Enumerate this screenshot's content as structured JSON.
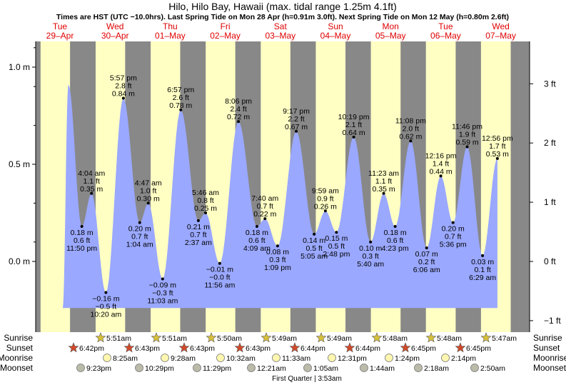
{
  "title": "Hilo, Hilo Bay, Hawaii (max. tidal range 1.25m 4.1ft)",
  "subtitle": "Times are HST (UTC −10.0hrs). Last Spring Tide on Mon 28 Apr (h=0.91m 3.0ft). Next Spring Tide on Mon 12 May (h=0.80m 2.6ft)",
  "colors": {
    "water": "#9aa8ff",
    "day": "#ffffc4",
    "night": "#888888",
    "accent": "#e00000"
  },
  "days": [
    {
      "dow": "Tue",
      "date": "29–Apr"
    },
    {
      "dow": "Wed",
      "date": "30–Apr"
    },
    {
      "dow": "Thu",
      "date": "01–May"
    },
    {
      "dow": "Fri",
      "date": "02–May"
    },
    {
      "dow": "Sat",
      "date": "03–May"
    },
    {
      "dow": "Sun",
      "date": "04–May"
    },
    {
      "dow": "Mon",
      "date": "05–May"
    },
    {
      "dow": "Tue",
      "date": "06–May"
    },
    {
      "dow": "Wed",
      "date": "07–May"
    }
  ],
  "left_ticks": [
    "1.0 m",
    "0.5 m",
    "0.0 m"
  ],
  "right_ticks": [
    "3 ft",
    "2 ft",
    "1 ft",
    "0 ft",
    "−1 ft"
  ],
  "chart_data": {
    "type": "area",
    "title": "Hilo, Hilo Bay, Hawaii (max. tidal range 1.25m 4.1ft)",
    "y_unit": "m",
    "ylim": [
      -0.25,
      1.2
    ],
    "x_unit": "hours from midnight 29-Apr (HST)",
    "start_level": 0.91,
    "extrema": [
      {
        "day": "29-Apr",
        "time": "11:50 pm",
        "h": 0.18,
        "ft": "0.6 ft",
        "type": "low"
      },
      {
        "day": "30-Apr",
        "time": "4:04 am",
        "h": 0.35,
        "ft": "1.1 ft",
        "type": "high"
      },
      {
        "day": "30-Apr",
        "time": "10:20 am",
        "h": -0.16,
        "ft": "−0.5 ft",
        "type": "low"
      },
      {
        "day": "30-Apr",
        "time": "5:57 pm",
        "h": 0.84,
        "ft": "2.8 ft",
        "type": "high"
      },
      {
        "day": "01-May",
        "time": "1:04 am",
        "h": 0.2,
        "ft": "0.7 ft",
        "type": "low"
      },
      {
        "day": "01-May",
        "time": "4:47 am",
        "h": 0.3,
        "ft": "1.0 ft",
        "type": "high"
      },
      {
        "day": "01-May",
        "time": "11:03 am",
        "h": -0.09,
        "ft": "−0.3 ft",
        "type": "low"
      },
      {
        "day": "01-May",
        "time": "6:57 pm",
        "h": 0.78,
        "ft": "2.6 ft",
        "type": "high"
      },
      {
        "day": "02-May",
        "time": "2:37 am",
        "h": 0.21,
        "ft": "0.7 ft",
        "type": "low"
      },
      {
        "day": "02-May",
        "time": "5:46 am",
        "h": 0.25,
        "ft": "0.8 ft",
        "type": "high"
      },
      {
        "day": "02-May",
        "time": "11:56 am",
        "h": -0.01,
        "ft": "−0.0 ft",
        "type": "low"
      },
      {
        "day": "02-May",
        "time": "8:06 pm",
        "h": 0.72,
        "ft": "2.4 ft",
        "type": "high"
      },
      {
        "day": "03-May",
        "time": "4:09 am",
        "h": 0.18,
        "ft": "0.6 ft",
        "type": "low"
      },
      {
        "day": "03-May",
        "time": "7:40 am",
        "h": 0.22,
        "ft": "0.7 ft",
        "type": "high"
      },
      {
        "day": "03-May",
        "time": "1:09 pm",
        "h": 0.08,
        "ft": "0.3 ft",
        "type": "low"
      },
      {
        "day": "03-May",
        "time": "9:17 pm",
        "h": 0.67,
        "ft": "2.2 ft",
        "type": "high"
      },
      {
        "day": "04-May",
        "time": "5:05 am",
        "h": 0.14,
        "ft": "0.5 ft",
        "type": "low"
      },
      {
        "day": "04-May",
        "time": "9:59 am",
        "h": 0.26,
        "ft": "0.9 ft",
        "type": "high"
      },
      {
        "day": "04-May",
        "time": "2:48 pm",
        "h": 0.15,
        "ft": "0.5 ft",
        "type": "low"
      },
      {
        "day": "04-May",
        "time": "10:19 pm",
        "h": 0.64,
        "ft": "2.1 ft",
        "type": "high"
      },
      {
        "day": "05-May",
        "time": "5:40 am",
        "h": 0.1,
        "ft": "0.3 ft",
        "type": "low"
      },
      {
        "day": "05-May",
        "time": "11:23 am",
        "h": 0.35,
        "ft": "1.1 ft",
        "type": "high"
      },
      {
        "day": "05-May",
        "time": "4:23 pm",
        "h": 0.18,
        "ft": "0.6 ft",
        "type": "low"
      },
      {
        "day": "05-May",
        "time": "11:08 pm",
        "h": 0.62,
        "ft": "2.0 ft",
        "type": "high"
      },
      {
        "day": "06-May",
        "time": "6:06 am",
        "h": 0.07,
        "ft": "0.2 ft",
        "type": "low"
      },
      {
        "day": "06-May",
        "time": "12:16 pm",
        "h": 0.44,
        "ft": "1.4 ft",
        "type": "high"
      },
      {
        "day": "06-May",
        "time": "5:36 pm",
        "h": 0.2,
        "ft": "0.7 ft",
        "type": "low"
      },
      {
        "day": "06-May",
        "time": "11:46 pm",
        "h": 0.59,
        "ft": "1.9 ft",
        "type": "high"
      },
      {
        "day": "07-May",
        "time": "6:29 am",
        "h": 0.03,
        "ft": "0.1 ft",
        "type": "low"
      },
      {
        "day": "07-May",
        "time": "12:56 pm",
        "h": 0.53,
        "ft": "1.7 ft",
        "type": "high"
      }
    ]
  },
  "astro": {
    "labels": [
      "Sunrise",
      "Sunset",
      "Moonrise",
      "Moonset"
    ],
    "sunrise": [
      "5:51am",
      "5:51am",
      "5:50am",
      "5:49am",
      "5:49am",
      "5:48am",
      "5:48am",
      "5:47am"
    ],
    "sunset": [
      "6:42pm",
      "6:43pm",
      "6:43pm",
      "6:43pm",
      "6:44pm",
      "6:44pm",
      "6:45pm",
      "6:45pm"
    ],
    "moonrise": [
      "8:25am",
      "9:28am",
      "10:32am",
      "11:33am",
      "12:31pm",
      "1:24pm",
      "2:14pm"
    ],
    "moonset": [
      "9:23pm",
      "10:29pm",
      "11:29pm",
      "12:21am",
      "1:05am",
      "1:44am",
      "2:18am",
      "2:50am"
    ],
    "phase": "First Quarter | 3:53am"
  }
}
